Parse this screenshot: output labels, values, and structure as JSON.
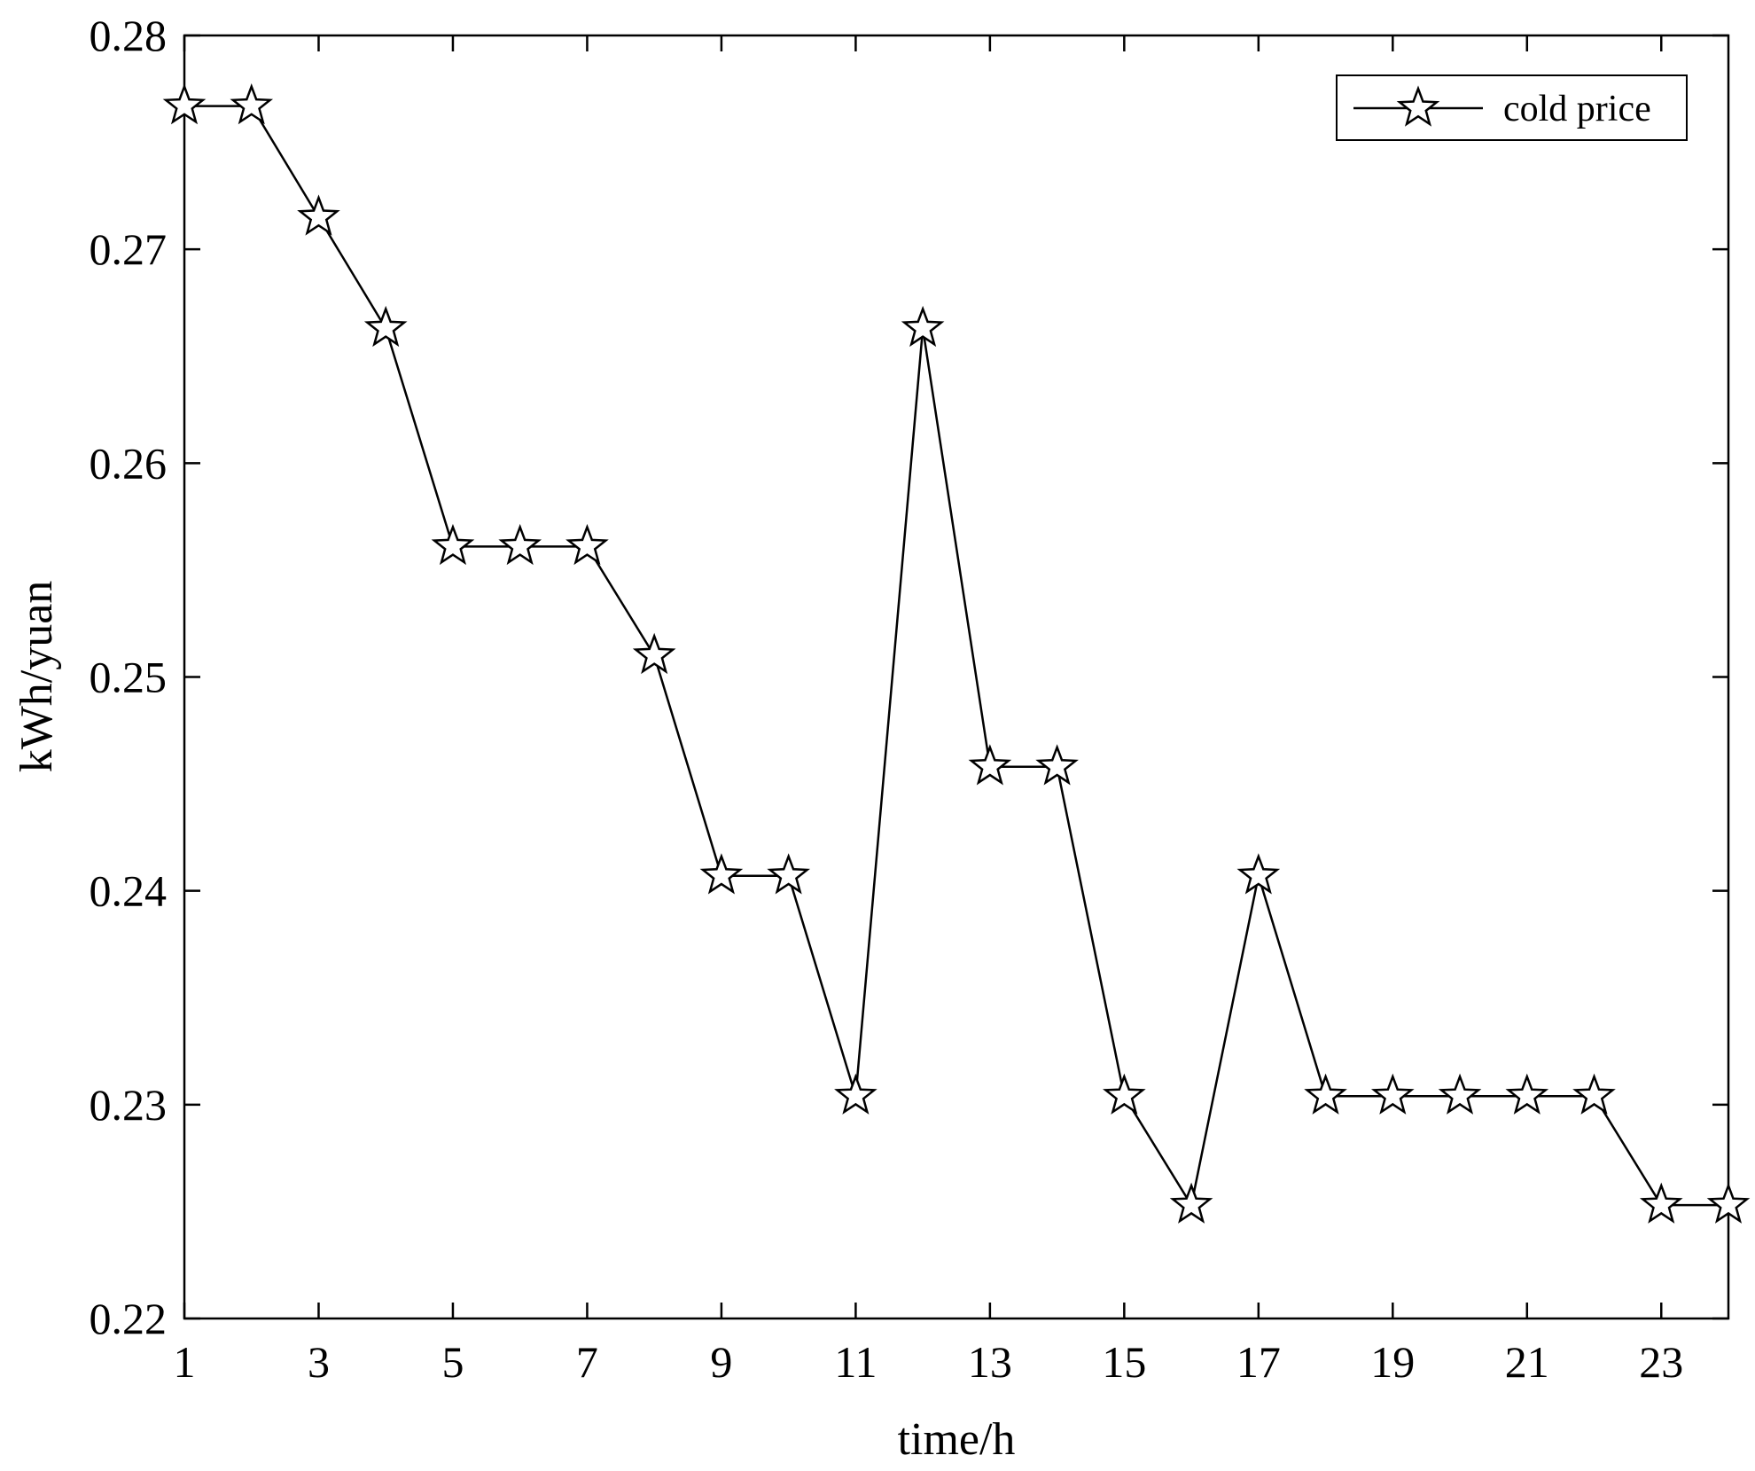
{
  "chart_data": {
    "type": "line",
    "title": "",
    "xlabel": "time/h",
    "ylabel": "kWh/yuan",
    "x": [
      1,
      2,
      3,
      4,
      5,
      6,
      7,
      8,
      9,
      10,
      11,
      12,
      13,
      14,
      15,
      16,
      17,
      18,
      19,
      20,
      21,
      22,
      23,
      24
    ],
    "xlim": [
      1,
      24
    ],
    "ylim": [
      0.22,
      0.28
    ],
    "xticks": [
      1,
      3,
      5,
      7,
      9,
      11,
      13,
      15,
      17,
      19,
      21,
      23
    ],
    "xtick_labels": [
      "1",
      "3",
      "5",
      "7",
      "9",
      "11",
      "13",
      "15",
      "17",
      "19",
      "21",
      "23"
    ],
    "yticks": [
      0.22,
      0.23,
      0.24,
      0.25,
      0.26,
      0.27,
      0.28
    ],
    "ytick_labels": [
      "0.22",
      "0.23",
      "0.24",
      "0.25",
      "0.26",
      "0.27",
      "0.28"
    ],
    "grid": false,
    "legend_position": "top-right",
    "series": [
      {
        "name": "cold price",
        "color": "#000000",
        "marker": "star",
        "values": [
          0.2767,
          0.2767,
          0.2715,
          0.2663,
          0.2561,
          0.2561,
          0.2561,
          0.251,
          0.2407,
          0.2407,
          0.2304,
          0.2663,
          0.2458,
          0.2458,
          0.2304,
          0.2253,
          0.2407,
          0.2304,
          0.2304,
          0.2304,
          0.2304,
          0.2304,
          0.2253,
          0.2253
        ]
      }
    ]
  }
}
